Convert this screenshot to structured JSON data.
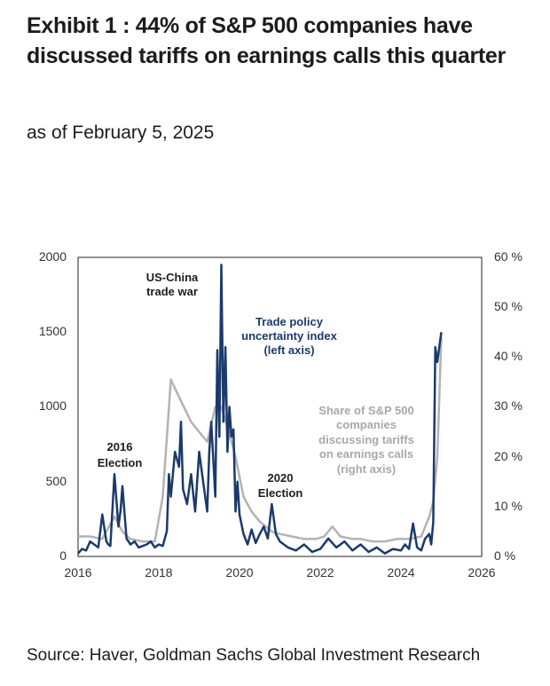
{
  "title": "Exhibit 1 : 44% of S&P 500 companies have discussed tariffs on earnings calls this quarter",
  "subtitle": "as of February 5, 2025",
  "source": "Source: Haver, Goldman Sachs Global Investment Research",
  "chart_data": {
    "type": "line",
    "x_axis": {
      "range": [
        2016,
        2026
      ],
      "ticks": [
        "2016",
        "2018",
        "2020",
        "2022",
        "2024",
        "2026"
      ]
    },
    "y_left": {
      "range": [
        0,
        2000
      ],
      "ticks": [
        "0",
        "500",
        "1000",
        "1500",
        "2000"
      ]
    },
    "y_right": {
      "range": [
        0,
        60
      ],
      "ticks": [
        "0 %",
        "10 %",
        "20 %",
        "30 %",
        "40 %",
        "50 %",
        "60 %"
      ]
    },
    "grid": false,
    "annotations": {
      "us_china": [
        "US-China",
        "trade war"
      ],
      "tpu": [
        "Trade policy",
        "uncertainty index",
        "(left axis)"
      ],
      "share": [
        "Share of S&P 500",
        "companies",
        "discussing  tariffs",
        "on earnings calls",
        "(right axis)"
      ],
      "e2016": [
        "2016",
        "Election"
      ],
      "e2020": [
        "2020",
        "Election"
      ]
    },
    "colors": {
      "tpu": "#1b3a6b",
      "share": "#b3b3b3"
    },
    "series": [
      {
        "axis": "left",
        "x": [
          2016.0,
          2016.1,
          2016.2,
          2016.3,
          2016.4,
          2016.5,
          2016.6,
          2016.7,
          2016.75,
          2016.8,
          2016.9,
          2017.0,
          2017.05,
          2017.1,
          2017.2,
          2017.3,
          2017.4,
          2017.5,
          2017.6,
          2017.7,
          2017.8,
          2017.9,
          2018.0,
          2018.1,
          2018.2,
          2018.25,
          2018.3,
          2018.4,
          2018.5,
          2018.55,
          2018.6,
          2018.7,
          2018.8,
          2018.9,
          2019.0,
          2019.1,
          2019.2,
          2019.25,
          2019.3,
          2019.4,
          2019.45,
          2019.5,
          2019.55,
          2019.6,
          2019.65,
          2019.7,
          2019.75,
          2019.8,
          2019.85,
          2019.9,
          2019.95,
          2020.0,
          2020.1,
          2020.2,
          2020.3,
          2020.4,
          2020.5,
          2020.6,
          2020.7,
          2020.8,
          2020.9,
          2021.0,
          2021.2,
          2021.4,
          2021.6,
          2021.8,
          2022.0,
          2022.2,
          2022.4,
          2022.6,
          2022.8,
          2023.0,
          2023.2,
          2023.4,
          2023.6,
          2023.8,
          2024.0,
          2024.1,
          2024.2,
          2024.3,
          2024.4,
          2024.5,
          2024.6,
          2024.7,
          2024.75,
          2024.8,
          2024.85,
          2024.9,
          2024.95,
          2025.0
        ],
        "values": [
          20,
          50,
          40,
          100,
          80,
          60,
          280,
          100,
          80,
          70,
          550,
          200,
          300,
          470,
          120,
          80,
          100,
          60,
          70,
          80,
          100,
          60,
          80,
          70,
          170,
          550,
          400,
          700,
          600,
          900,
          450,
          350,
          550,
          300,
          700,
          500,
          300,
          700,
          900,
          400,
          1380,
          800,
          1950,
          900,
          1400,
          700,
          1000,
          800,
          850,
          300,
          500,
          280,
          150,
          80,
          180,
          90,
          150,
          200,
          120,
          350,
          150,
          100,
          60,
          40,
          80,
          30,
          50,
          120,
          60,
          100,
          40,
          80,
          30,
          60,
          20,
          50,
          40,
          80,
          50,
          220,
          60,
          40,
          120,
          150,
          80,
          230,
          1400,
          1300,
          1400,
          1500
        ]
      },
      {
        "axis": "right",
        "x": [
          2016.0,
          2016.3,
          2016.6,
          2016.9,
          2017.1,
          2017.3,
          2017.6,
          2017.9,
          2018.1,
          2018.3,
          2018.5,
          2018.8,
          2019.0,
          2019.2,
          2019.4,
          2019.55,
          2019.7,
          2019.9,
          2020.1,
          2020.3,
          2020.5,
          2020.8,
          2021.0,
          2021.3,
          2021.6,
          2021.9,
          2022.1,
          2022.3,
          2022.5,
          2022.8,
          2023.0,
          2023.3,
          2023.6,
          2023.9,
          2024.2,
          2024.5,
          2024.7,
          2024.8,
          2024.9,
          2025.0
        ],
        "values": [
          4,
          4,
          3.5,
          8,
          5,
          3.5,
          3,
          3,
          12,
          35.5,
          32,
          27,
          25,
          23,
          30,
          30,
          26,
          20,
          12,
          9,
          7,
          5,
          4.5,
          4,
          3.5,
          3.5,
          4,
          6,
          4,
          3.5,
          3.5,
          3,
          3,
          3.5,
          3.5,
          4,
          8,
          11,
          20,
          44
        ]
      }
    ]
  }
}
